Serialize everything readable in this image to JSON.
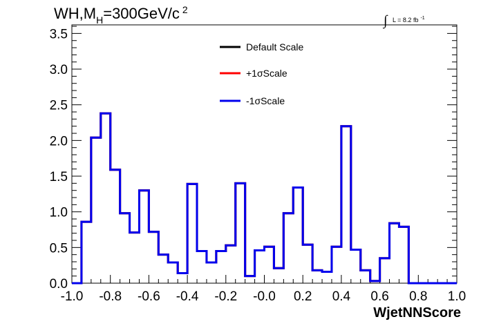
{
  "chart_data": {
    "type": "line",
    "title": {
      "main": "WH,M",
      "sub": "H",
      "rest": "=300GeV/c",
      "sup": "2"
    },
    "luminosity": {
      "integral": "∫",
      "text": "L = 8.2 fb",
      "sup": "-1"
    },
    "xlabel": "WjetNNScore",
    "ylabel": "",
    "xlim": [
      -1.0,
      1.0
    ],
    "ylim": [
      0,
      3.62
    ],
    "x_ticks": [
      "-1.0",
      "-0.8",
      "-0.6",
      "-0.4",
      "-0.2",
      "-0.0",
      "0.2",
      "0.4",
      "0.6",
      "0.8",
      "1.0"
    ],
    "y_ticks": [
      "0.0",
      "0.5",
      "1.0",
      "1.5",
      "2.0",
      "2.5",
      "3.0",
      "3.5"
    ],
    "bin_edges": [
      -1.0,
      0.05
    ],
    "series": [
      {
        "name": "Default Scale",
        "color": "#000000",
        "values": [
          0,
          0.86,
          2.04,
          2.38,
          1.59,
          0.98,
          0.71,
          1.3,
          0.72,
          0.4,
          0.29,
          0.14,
          1.39,
          0.45,
          0.29,
          0.45,
          0.53,
          1.4,
          0.1,
          0.46,
          0.51,
          0.21,
          0.98,
          1.34,
          0.54,
          0.18,
          0.16,
          0.51,
          2.2,
          0.47,
          0.18,
          0.03,
          0.35,
          0.84,
          0.79,
          0,
          0,
          0,
          0,
          0
        ]
      },
      {
        "name": "+1σScale",
        "color": "#ff0000",
        "values": [
          0,
          0.86,
          2.04,
          2.38,
          1.59,
          0.98,
          0.71,
          1.3,
          0.72,
          0.4,
          0.29,
          0.14,
          1.39,
          0.45,
          0.29,
          0.45,
          0.53,
          1.4,
          0.1,
          0.46,
          0.51,
          0.21,
          0.98,
          1.34,
          0.54,
          0.18,
          0.16,
          0.51,
          2.2,
          0.47,
          0.18,
          0.03,
          0.35,
          0.84,
          0.79,
          0,
          0,
          0,
          0,
          0
        ]
      },
      {
        "name": "-1σScale",
        "color": "#0000ee",
        "values": [
          0,
          0.86,
          2.04,
          2.38,
          1.59,
          0.98,
          0.71,
          1.3,
          0.72,
          0.4,
          0.29,
          0.14,
          1.39,
          0.45,
          0.29,
          0.45,
          0.53,
          1.4,
          0.1,
          0.46,
          0.51,
          0.21,
          0.98,
          1.34,
          0.54,
          0.18,
          0.16,
          0.51,
          2.2,
          0.47,
          0.18,
          0.03,
          0.35,
          0.84,
          0.79,
          0,
          0,
          0,
          0,
          0
        ]
      }
    ],
    "grid": false,
    "legend_position": "top-center"
  }
}
